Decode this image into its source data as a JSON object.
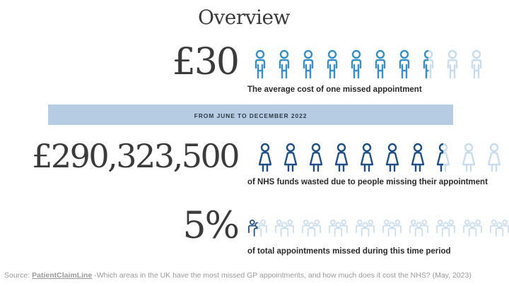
{
  "title": "Overview",
  "stat1": {
    "value": "£30",
    "caption": "The average cost of one missed appointment",
    "level": 0.75,
    "icon": "person-icon",
    "color": "#3a8fc2"
  },
  "band": {
    "text": "FROM JUNE TO DECEMBER 2022",
    "color": "#b5cce3"
  },
  "stat2": {
    "value": "£290,323,500",
    "caption": "of NHS funds wasted due to people missing their appointment",
    "level": 0.75,
    "icon": "person-dress-icon",
    "color": "#1f4f86"
  },
  "stat3": {
    "value": "5%",
    "caption": "of total appointments missed during this time period",
    "level": 0.05,
    "icon": "people-group-icon",
    "color": "#1f4f86"
  },
  "source": {
    "prefix": "Source: ",
    "name": "PatientClaimLine",
    "text": " -Which areas in the UK have the most missed GP appointments, and how much does it cost the NHS? (May, 2023)"
  }
}
